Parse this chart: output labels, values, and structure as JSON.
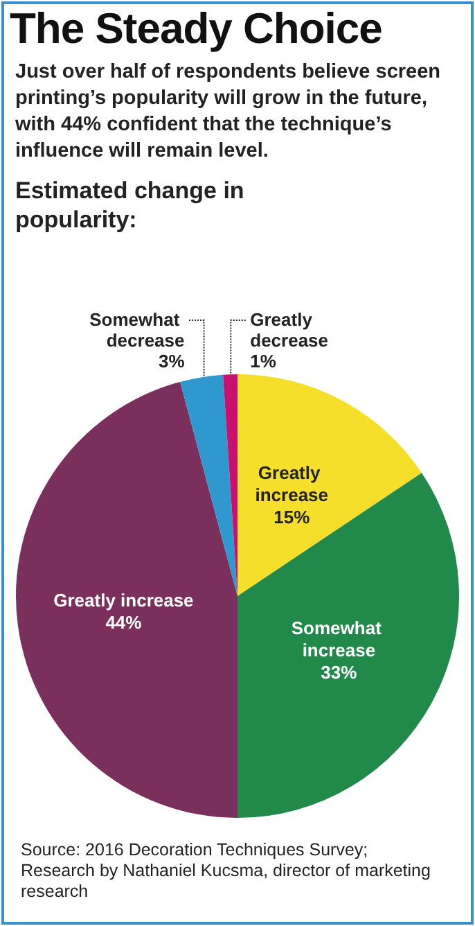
{
  "chart_data": {
    "type": "pie",
    "title": "The Steady Choice",
    "subtitle": "Just over half of respondents believe screen printing’s popularity will grow in the future, with 44% confident that the technique’s influence will remain level.",
    "annotations": [
      "Estimated change in popularity:",
      "Source: 2016 Decoration Techniques Survey; Research by Nathaniel Kucsma, director of marketing research"
    ],
    "categories": [
      "Greatly increase",
      "Somewhat increase",
      "Greatly increase",
      "Somewhat decrease",
      "Greatly decrease"
    ],
    "values": [
      15,
      33,
      44,
      3,
      1
    ],
    "value_labels": [
      "15%",
      "33%",
      "44%",
      "3%",
      "1%"
    ],
    "colors": [
      "#f6df2a",
      "#218a4a",
      "#7b2f5c",
      "#2f98cf",
      "#c8106e"
    ],
    "legend": false
  }
}
